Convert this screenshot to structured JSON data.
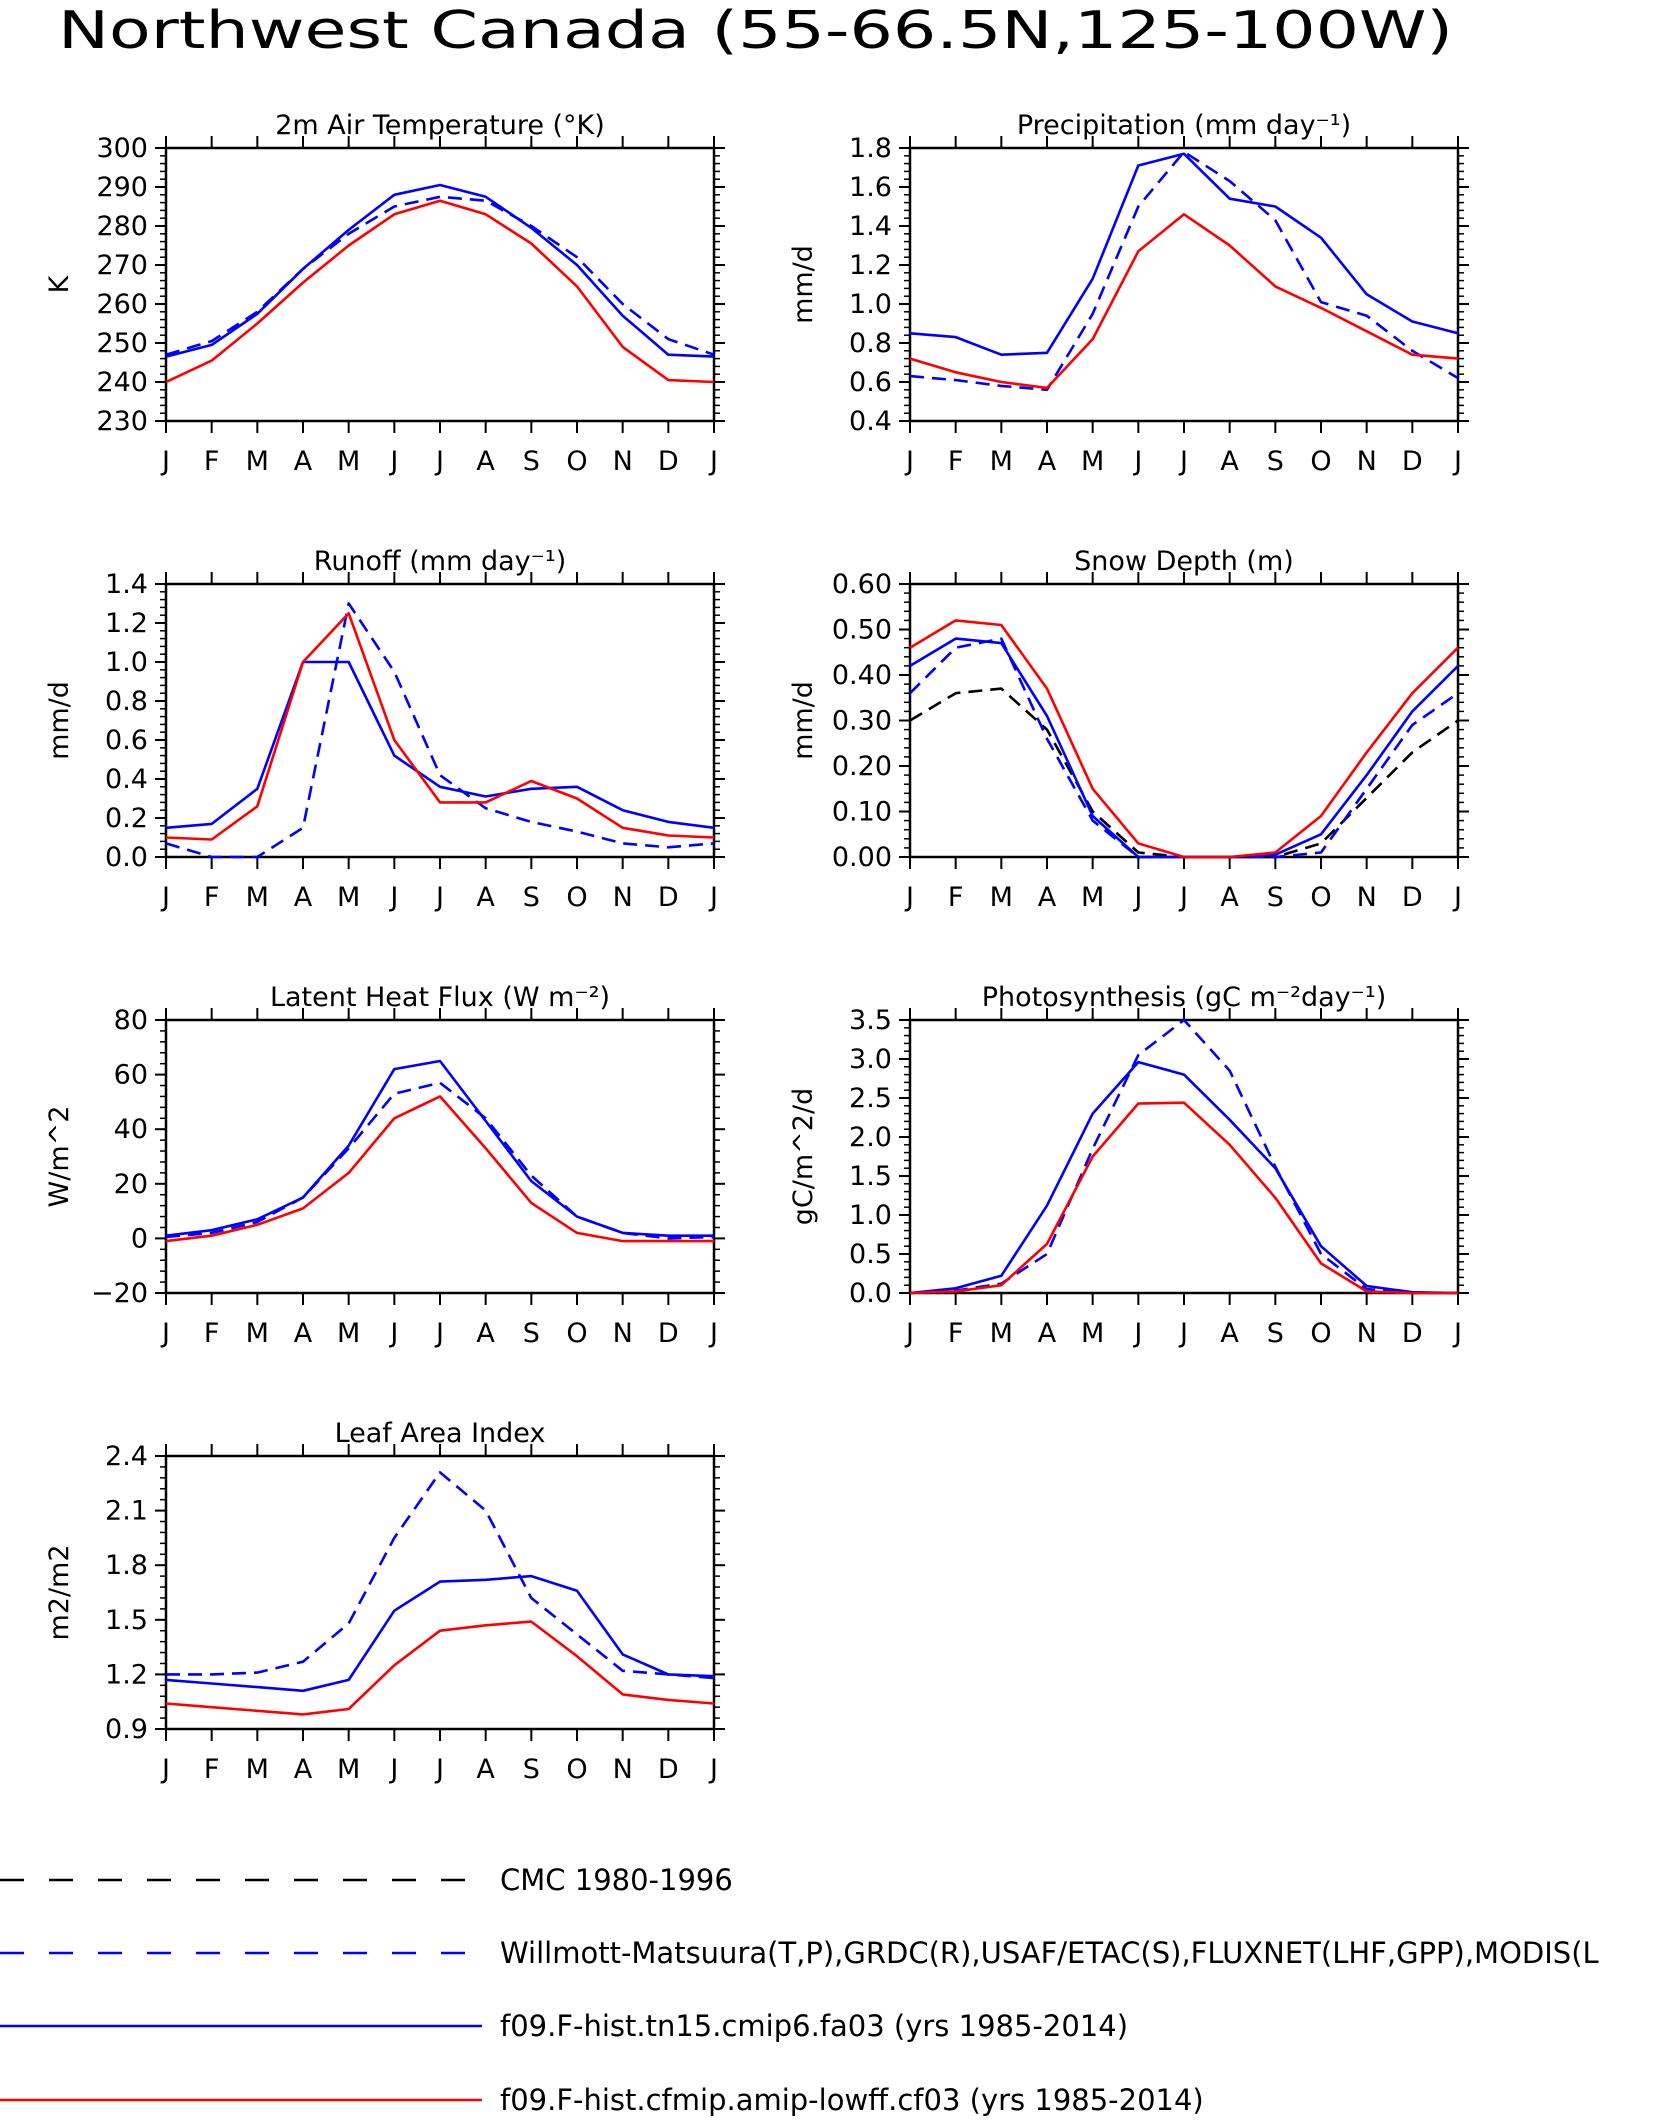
{
  "page_title": "Northwest Canada (55-66.5N,125-100W)",
  "months": [
    "J",
    "F",
    "M",
    "A",
    "M",
    "J",
    "J",
    "A",
    "S",
    "O",
    "N",
    "D",
    "J"
  ],
  "series_styles": {
    "cmc": {
      "color": "#000000",
      "dashed": true
    },
    "obs": {
      "color": "#0000ff",
      "dashed": true
    },
    "cmip6": {
      "color": "#0000ff",
      "dashed": false
    },
    "lowff": {
      "color": "#ff0000",
      "dashed": false
    }
  },
  "legend": [
    {
      "key": "cmc",
      "label": "CMC 1980-1996"
    },
    {
      "key": "obs",
      "label": "Willmott-Matsuura(T,P),GRDC(R),USAF/ETAC(S),FLUXNET(LHF,GPP),MODIS(L"
    },
    {
      "key": "cmip6",
      "label": "f09.F-hist.tn15.cmip6.fa03 (yrs 1985-2014)"
    },
    {
      "key": "lowff",
      "label": "f09.F-hist.cfmip.amip-lowff.cf03 (yrs 1985-2014)"
    }
  ],
  "chart_data": [
    {
      "type": "line",
      "title": "2m Air Temperature (°K)",
      "ylabel": "K",
      "ylim": [
        230,
        300
      ],
      "yticks": [
        230,
        240,
        250,
        260,
        270,
        280,
        290,
        300
      ],
      "ytick_labels": [
        "230",
        "240",
        "250",
        "260",
        "270",
        "280",
        "290",
        "300"
      ],
      "series": [
        {
          "key": "obs",
          "values": [
            247,
            250.5,
            258,
            269,
            278,
            285,
            287.5,
            286.5,
            280,
            272,
            260,
            251,
            247
          ]
        },
        {
          "key": "cmip6",
          "values": [
            246.5,
            249.5,
            257.5,
            269,
            279,
            288,
            290.5,
            287.5,
            279.5,
            270,
            257,
            247,
            246.5
          ]
        },
        {
          "key": "lowff",
          "values": [
            240,
            245.5,
            255,
            265.5,
            275,
            283,
            286.5,
            283,
            275.5,
            264.5,
            249,
            240.5,
            240
          ]
        }
      ]
    },
    {
      "type": "line",
      "title": "Precipitation (mm day⁻¹)",
      "ylabel": "mm/d",
      "ylim": [
        0.4,
        1.8
      ],
      "yticks": [
        0.4,
        0.6,
        0.8,
        1.0,
        1.2,
        1.4,
        1.6,
        1.8
      ],
      "ytick_labels": [
        "0.4",
        "0.6",
        "0.8",
        "1.0",
        "1.2",
        "1.4",
        "1.6",
        "1.8"
      ],
      "series": [
        {
          "key": "obs",
          "values": [
            0.63,
            0.61,
            0.58,
            0.56,
            0.95,
            1.5,
            1.78,
            1.63,
            1.43,
            1.01,
            0.94,
            0.76,
            0.62
          ]
        },
        {
          "key": "cmip6",
          "values": [
            0.85,
            0.83,
            0.74,
            0.75,
            1.13,
            1.71,
            1.77,
            1.54,
            1.5,
            1.34,
            1.05,
            0.91,
            0.85
          ]
        },
        {
          "key": "lowff",
          "values": [
            0.72,
            0.65,
            0.6,
            0.57,
            0.82,
            1.27,
            1.46,
            1.3,
            1.09,
            0.98,
            0.86,
            0.74,
            0.72
          ]
        }
      ]
    },
    {
      "type": "line",
      "title": "Runoff (mm day⁻¹)",
      "ylabel": "mm/d",
      "ylim": [
        0.0,
        1.4
      ],
      "yticks": [
        0.0,
        0.2,
        0.4,
        0.6,
        0.8,
        1.0,
        1.2,
        1.4
      ],
      "ytick_labels": [
        "0.0",
        "0.2",
        "0.4",
        "0.6",
        "0.8",
        "1.0",
        "1.2",
        "1.4"
      ],
      "series": [
        {
          "key": "obs",
          "values": [
            0.07,
            0.0,
            0.0,
            0.15,
            1.3,
            0.95,
            0.42,
            0.25,
            0.18,
            0.13,
            0.07,
            0.05,
            0.07
          ]
        },
        {
          "key": "cmip6",
          "values": [
            0.15,
            0.17,
            0.35,
            1.0,
            1.0,
            0.52,
            0.36,
            0.31,
            0.35,
            0.36,
            0.24,
            0.18,
            0.15
          ]
        },
        {
          "key": "lowff",
          "values": [
            0.1,
            0.09,
            0.26,
            1.0,
            1.25,
            0.6,
            0.28,
            0.28,
            0.39,
            0.3,
            0.15,
            0.11,
            0.1
          ]
        }
      ]
    },
    {
      "type": "line",
      "title": "Snow Depth (m)",
      "ylabel": "mm/d",
      "ylim": [
        0.0,
        0.6
      ],
      "yticks": [
        0.0,
        0.1,
        0.2,
        0.3,
        0.4,
        0.5,
        0.6
      ],
      "ytick_labels": [
        "0.00",
        "0.10",
        "0.20",
        "0.30",
        "0.40",
        "0.50",
        "0.60"
      ],
      "series": [
        {
          "key": "cmc",
          "values": [
            0.3,
            0.36,
            0.37,
            0.28,
            0.1,
            0.01,
            0.0,
            0.0,
            0.0,
            0.03,
            0.13,
            0.23,
            0.3
          ]
        },
        {
          "key": "obs",
          "values": [
            0.36,
            0.46,
            0.48,
            0.26,
            0.08,
            0.0,
            0.0,
            0.0,
            0.0,
            0.01,
            0.15,
            0.29,
            0.36
          ]
        },
        {
          "key": "cmip6",
          "values": [
            0.42,
            0.48,
            0.47,
            0.31,
            0.09,
            0.0,
            0.0,
            0.0,
            0.005,
            0.05,
            0.18,
            0.32,
            0.42
          ]
        },
        {
          "key": "lowff",
          "values": [
            0.46,
            0.52,
            0.51,
            0.37,
            0.15,
            0.03,
            0.0,
            0.0,
            0.01,
            0.09,
            0.23,
            0.36,
            0.46
          ]
        }
      ]
    },
    {
      "type": "line",
      "title": "Latent Heat Flux (W m⁻²)",
      "ylabel": "W/m^2",
      "ylim": [
        -20,
        80
      ],
      "yticks": [
        -20,
        0,
        20,
        40,
        60,
        80
      ],
      "ytick_labels": [
        "−20",
        "0",
        "20",
        "40",
        "60",
        "80"
      ],
      "series": [
        {
          "key": "obs",
          "values": [
            0.5,
            2,
            6,
            15,
            33,
            53,
            57,
            44,
            23,
            8,
            2,
            0,
            0.5
          ]
        },
        {
          "key": "cmip6",
          "values": [
            1,
            3,
            7,
            15,
            34,
            62,
            65,
            43,
            21,
            8,
            2,
            1,
            1
          ]
        },
        {
          "key": "lowff",
          "values": [
            -1,
            1,
            5,
            11,
            24,
            44,
            52,
            33,
            13,
            2,
            -1,
            -1,
            -1
          ]
        }
      ]
    },
    {
      "type": "line",
      "title": "Photosynthesis (gC m⁻²day⁻¹)",
      "ylabel": "gC/m^2/d",
      "ylim": [
        0.0,
        3.5
      ],
      "yticks": [
        0.0,
        0.5,
        1.0,
        1.5,
        2.0,
        2.5,
        3.0,
        3.5
      ],
      "ytick_labels": [
        "0.0",
        "0.5",
        "1.0",
        "1.5",
        "2.0",
        "2.5",
        "3.0",
        "3.5"
      ],
      "series": [
        {
          "key": "obs",
          "values": [
            0.0,
            0.03,
            0.12,
            0.5,
            1.85,
            3.05,
            3.5,
            2.85,
            1.62,
            0.5,
            0.05,
            0.0,
            0.0
          ]
        },
        {
          "key": "cmip6",
          "values": [
            0.0,
            0.06,
            0.22,
            1.12,
            2.3,
            2.96,
            2.8,
            2.22,
            1.6,
            0.6,
            0.09,
            0.01,
            0.0
          ]
        },
        {
          "key": "lowff",
          "values": [
            0.0,
            0.02,
            0.1,
            0.63,
            1.75,
            2.43,
            2.44,
            1.9,
            1.22,
            0.38,
            0.02,
            0.0,
            0.0
          ]
        }
      ]
    },
    {
      "type": "line",
      "title": "Leaf Area Index",
      "ylabel": "m2/m2",
      "ylim": [
        0.9,
        2.4
      ],
      "yticks": [
        0.9,
        1.2,
        1.5,
        1.8,
        2.1,
        2.4
      ],
      "ytick_labels": [
        "0.9",
        "1.2",
        "1.5",
        "1.8",
        "2.1",
        "2.4"
      ],
      "series": [
        {
          "key": "obs",
          "values": [
            1.2,
            1.2,
            1.21,
            1.27,
            1.48,
            1.95,
            2.31,
            2.1,
            1.62,
            1.42,
            1.22,
            1.2,
            1.18
          ]
        },
        {
          "key": "cmip6",
          "values": [
            1.17,
            1.15,
            1.13,
            1.11,
            1.17,
            1.55,
            1.71,
            1.72,
            1.74,
            1.66,
            1.31,
            1.2,
            1.19
          ]
        },
        {
          "key": "lowff",
          "values": [
            1.04,
            1.02,
            1.0,
            0.98,
            1.01,
            1.25,
            1.44,
            1.47,
            1.49,
            1.3,
            1.09,
            1.06,
            1.04
          ]
        }
      ]
    }
  ]
}
